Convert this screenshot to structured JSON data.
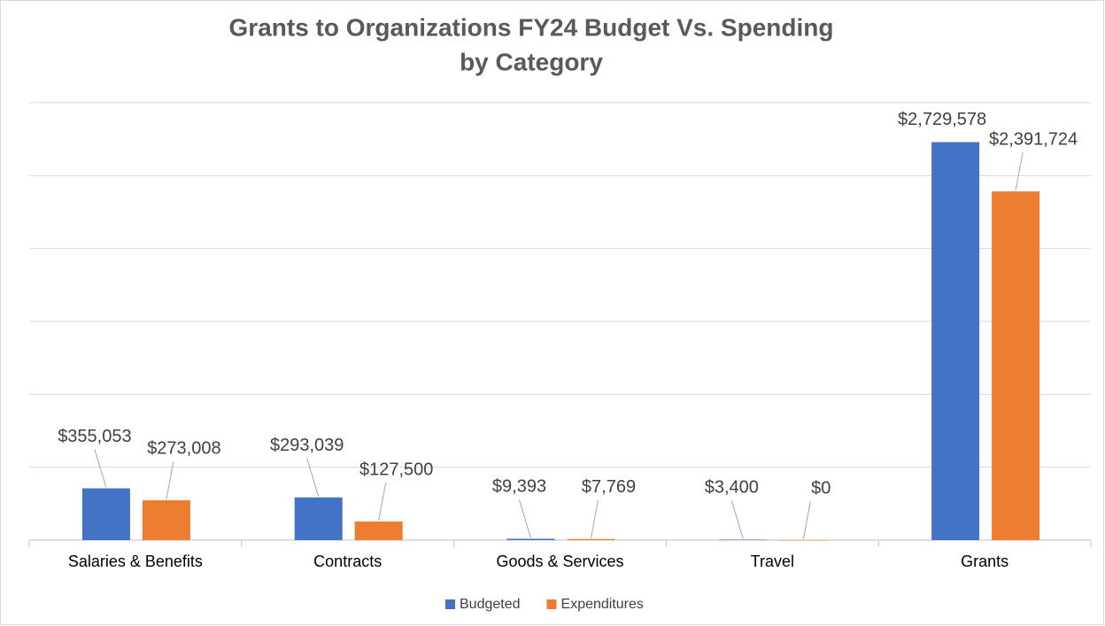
{
  "chart_data": {
    "type": "bar",
    "title": [
      "Grants to Organizations FY24 Budget Vs. Spending",
      "by Category"
    ],
    "categories": [
      "Salaries & Benefits",
      "Contracts",
      "Goods & Services",
      "Travel",
      "Grants"
    ],
    "series": [
      {
        "name": "Budgeted",
        "color": "#4472c4",
        "values": [
          355053,
          293039,
          9393,
          3400,
          2729578
        ],
        "value_labels": [
          "$355,053",
          "$293,039",
          "$9,393",
          "$3,400",
          "$2,729,578"
        ]
      },
      {
        "name": "Expenditures",
        "color": "#ed7d31",
        "values": [
          273008,
          127500,
          7769,
          0,
          2391724
        ],
        "value_labels": [
          "$273,008",
          "$127,500",
          "$7,769",
          "$0",
          "$2,391,724"
        ]
      }
    ],
    "ylim": [
      0,
      3000000
    ],
    "yticks": [
      0,
      500000,
      1000000,
      1500000,
      2000000,
      2500000,
      3000000
    ],
    "grid": true,
    "legend": "bottom"
  }
}
